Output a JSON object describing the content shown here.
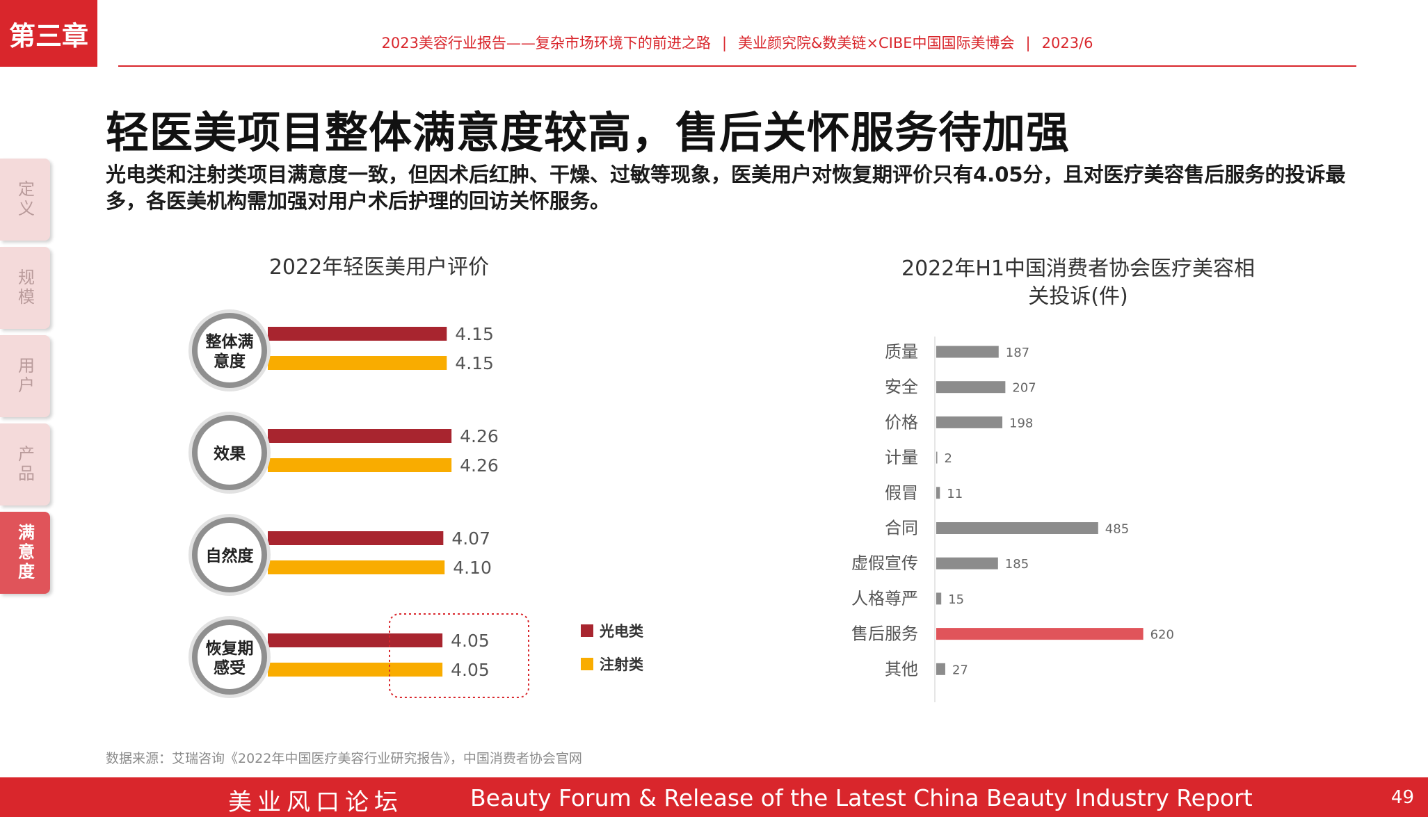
{
  "chapter_tag": "第三章",
  "header": {
    "report": "2023美容行业报告——复杂市场环境下的前进之路",
    "orgs": "美业颜究院&数美链×CIBE中国国际美博会",
    "date": "2023/6",
    "separator": "|"
  },
  "title": "轻医美项目整体满意度较高，售后关怀服务待加强",
  "subtitle": "光电类和注射类项目满意度一致，但因术后红肿、干燥、过敏等现象，医美用户对恢复期评价只有4.05分，且对医疗美容售后服务的投诉最多，各医美机构需加强对用户术后护理的回访关怀服务。",
  "side_tabs": [
    {
      "label": "定义",
      "active": false
    },
    {
      "label": "规模",
      "active": false
    },
    {
      "label": "用户",
      "active": false
    },
    {
      "label": "产品",
      "active": false
    },
    {
      "label": "满意度",
      "active": true
    }
  ],
  "chart_data": [
    {
      "type": "bar",
      "orientation": "horizontal",
      "title": "2022年轻医美用户评价",
      "categories": [
        "整体满意度",
        "效果",
        "自然度",
        "恢复期感受"
      ],
      "series": [
        {
          "name": "光电类",
          "values": [
            4.15,
            4.26,
            4.07,
            4.05
          ],
          "color": "#a8252f"
        },
        {
          "name": "注射类",
          "values": [
            4.15,
            4.26,
            4.1,
            4.05
          ],
          "color": "#f9ac00"
        }
      ],
      "legend_position": "right",
      "highlight_category": "恢复期感受"
    },
    {
      "type": "bar",
      "orientation": "horizontal",
      "title": "2022年H1中国消费者协会医疗美容相关投诉(件)",
      "categories": [
        "质量",
        "安全",
        "价格",
        "计量",
        "假冒",
        "合同",
        "虚假宣传",
        "人格尊严",
        "售后服务",
        "其他"
      ],
      "values": [
        187,
        207,
        198,
        2,
        11,
        485,
        185,
        15,
        620,
        27
      ],
      "colors": {
        "default": "#8c8c8c",
        "highlight": "#e0545a"
      },
      "highlight_category": "售后服务"
    }
  ],
  "source": "数据来源：艾瑞咨询《2022年中国医疗美容行业研究报告》，中国消费者协会官网",
  "footer": {
    "cn": "美业风口论坛",
    "en": "Beauty Forum & Release of the Latest China Beauty Industry Report",
    "page": "49"
  }
}
